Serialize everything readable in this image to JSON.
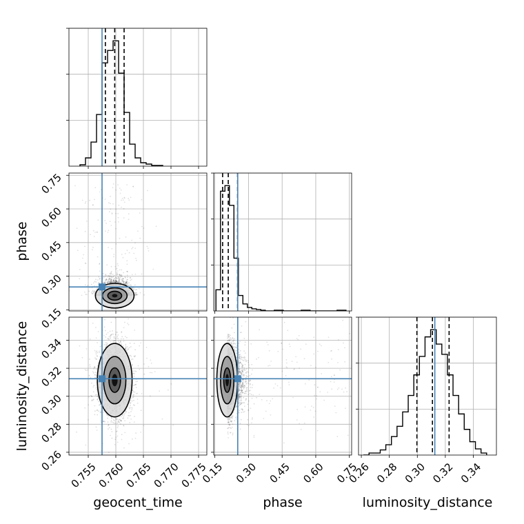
{
  "chart_data": {
    "type": "corner",
    "parameters": [
      "geocent_time",
      "phase",
      "luminosity_distance"
    ],
    "truths": {
      "geocent_time": 0.7575,
      "phase": 0.252,
      "luminosity_distance": 0.3125
    },
    "truth_color": "#4682b4",
    "grid": true,
    "axes": {
      "geocent_time": {
        "label": "geocent_time",
        "range": [
          0.7515,
          0.7765
        ],
        "ticks": [
          "0.755",
          "0.760",
          "0.765",
          "0.770",
          "0.775"
        ]
      },
      "phase": {
        "label": "phase",
        "range": [
          0.145,
          0.76
        ],
        "ticks": [
          "0.15",
          "0.30",
          "0.45",
          "0.60",
          "0.75"
        ]
      },
      "luminosity_distance": {
        "label": "luminosity_distance",
        "range": [
          0.258,
          0.3565
        ],
        "ticks": [
          "0.26",
          "0.28",
          "0.30",
          "0.32",
          "0.34"
        ]
      }
    },
    "histograms": {
      "geocent_time": {
        "bin_edges": [
          0.7535,
          0.7545,
          0.7555,
          0.7565,
          0.7575,
          0.7585,
          0.7595,
          0.7605,
          0.7615,
          0.7625,
          0.7635,
          0.7645,
          0.7655,
          0.7665,
          0.7675,
          0.7685
        ],
        "counts": [
          2,
          12,
          35,
          75,
          150,
          168,
          182,
          135,
          78,
          32,
          12,
          5,
          3,
          1,
          1
        ],
        "quantiles": [
          0.7581,
          0.7598,
          0.7615
        ]
      },
      "phase": {
        "bin_edges": [
          0.155,
          0.175,
          0.195,
          0.215,
          0.235,
          0.255,
          0.275,
          0.295,
          0.315,
          0.335,
          0.355,
          0.375,
          0.415,
          0.455,
          0.495,
          0.535,
          0.575,
          0.615,
          0.655,
          0.695,
          0.735
        ],
        "counts": [
          30,
          170,
          178,
          150,
          75,
          22,
          10,
          5,
          3,
          2,
          1,
          0,
          1,
          0,
          0,
          1,
          0,
          0,
          0,
          1
        ],
        "quantiles": [
          0.1846,
          0.2098,
          0.2514
        ]
      },
      "luminosity_distance": {
        "bin_edges": [
          0.2615,
          0.2655,
          0.2695,
          0.2735,
          0.2775,
          0.2815,
          0.2855,
          0.2895,
          0.2935,
          0.2975,
          0.3015,
          0.3055,
          0.3095,
          0.3135,
          0.3175,
          0.3215,
          0.3255,
          0.3295,
          0.3335,
          0.3375,
          0.3415,
          0.3455,
          0.3495
        ],
        "counts": [
          0,
          2,
          2,
          5,
          10,
          18,
          28,
          42,
          58,
          78,
          96,
          115,
          122,
          108,
          98,
          78,
          58,
          40,
          25,
          13,
          6,
          2
        ],
        "quantiles": [
          0.2997,
          0.3108,
          0.3227
        ]
      }
    },
    "scatter_2d": [
      {
        "x": "geocent_time",
        "y": "phase",
        "center": [
          0.7598,
          0.213
        ],
        "spread": [
          0.0014,
          0.022
        ],
        "contour_scales": [
          0.9,
          1.6,
          2.5
        ]
      },
      {
        "x": "geocent_time",
        "y": "luminosity_distance",
        "center": [
          0.7598,
          0.3115
        ],
        "spread": [
          0.0015,
          0.0125
        ],
        "contour_scales": [
          0.7,
          1.35,
          2.1
        ]
      },
      {
        "x": "phase",
        "y": "luminosity_distance",
        "center": [
          0.205,
          0.3115
        ],
        "spread": [
          0.022,
          0.0125
        ],
        "contour_scales": [
          0.7,
          1.35,
          2.1
        ]
      }
    ]
  }
}
